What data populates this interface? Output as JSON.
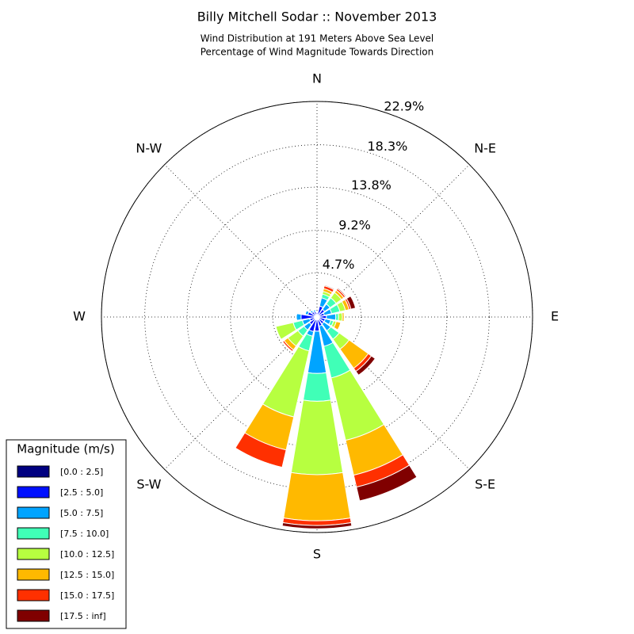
{
  "chart_data": {
    "type": "windrose",
    "title": "Billy Mitchell Sodar :: November 2013",
    "subtitle": [
      "Wind Distribution at 191 Meters Above Sea Level",
      "Percentage of Wind Magnitude Towards Direction"
    ],
    "directions": [
      "N",
      "N-E",
      "E",
      "S-E",
      "S",
      "S-W",
      "W",
      "N-W"
    ],
    "ylim": [
      0,
      22.9
    ],
    "yticks": [
      {
        "value": 4.7,
        "label": "4.7%"
      },
      {
        "value": 9.2,
        "label": "9.2%"
      },
      {
        "value": 13.8,
        "label": "13.8%"
      },
      {
        "value": 18.3,
        "label": "18.3%"
      },
      {
        "value": 22.9,
        "label": "22.9%"
      }
    ],
    "grid": true,
    "legend_title": "Magnitude (m/s)",
    "legend_position": "lower left",
    "series": [
      {
        "name": "[0.0 : 2.5]",
        "color": "#000080",
        "values": [
          0.2,
          0.2,
          0.2,
          0.2,
          0.2,
          0.2,
          0.3,
          0.3,
          0.3,
          0.3,
          0.3,
          0.2,
          0.3,
          0.2,
          0.2,
          0.2
        ]
      },
      {
        "name": "[2.5 : 5.0]",
        "color": "#0010ff",
        "values": [
          0.3,
          1.0,
          0.8,
          0.6,
          0.8,
          0.7,
          0.6,
          0.7,
          1.2,
          1.3,
          0.7,
          0.6,
          1.4,
          0.8,
          0.5,
          0.4
        ]
      },
      {
        "name": "[5.0 : 7.5]",
        "color": "#00a4ff",
        "values": [
          0,
          0.9,
          0.7,
          0.8,
          1.0,
          0.6,
          0.9,
          2.2,
          4.5,
          0.5,
          0.7,
          0.8,
          0.5,
          0.3,
          0.2,
          0.2
        ]
      },
      {
        "name": "[7.5 : 10.0]",
        "color": "#40ffb7",
        "values": [
          0,
          0.4,
          0.8,
          0.9,
          0.3,
          0.3,
          1.1,
          3.45,
          2.95,
          1.6,
          0.8,
          1.0,
          0,
          0,
          0,
          0
        ]
      },
      {
        "name": "[10.0 : 12.5]",
        "color": "#b7ff40",
        "values": [
          0,
          0.3,
          0.7,
          0.6,
          0.4,
          0.3,
          1.3,
          6.8,
          7.8,
          7.2,
          1.3,
          1.9,
          0,
          0,
          0,
          0
        ]
      },
      {
        "name": "[12.5 : 15.0]",
        "color": "#ffb900",
        "values": [
          0,
          0.3,
          0.3,
          0.4,
          0.2,
          0.5,
          2.5,
          3.8,
          4.9,
          3.6,
          0.5,
          0,
          0,
          0,
          0,
          0
        ]
      },
      {
        "name": "[15.0 : 17.5]",
        "color": "#ff3000",
        "values": [
          0,
          0.3,
          0.2,
          0.2,
          0,
          0,
          0.4,
          1.3,
          0.5,
          1.9,
          0.2,
          0,
          0,
          0,
          0,
          0
        ]
      },
      {
        "name": "[17.5 : inf]",
        "color": "#800000",
        "values": [
          0,
          0.1,
          0.1,
          0.5,
          0,
          0,
          0.5,
          1.5,
          0.35,
          0,
          0,
          0,
          0,
          0,
          0,
          0
        ]
      }
    ]
  }
}
